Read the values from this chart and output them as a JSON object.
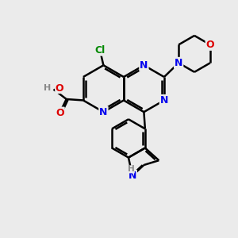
{
  "bg_color": "#ebebeb",
  "bond_color": "#000000",
  "bond_width": 1.8,
  "atom_colors": {
    "N": "#0000ee",
    "O": "#dd0000",
    "Cl": "#008800",
    "H": "#888888",
    "C": "#000000"
  },
  "figsize": [
    3.0,
    3.0
  ],
  "dpi": 100
}
